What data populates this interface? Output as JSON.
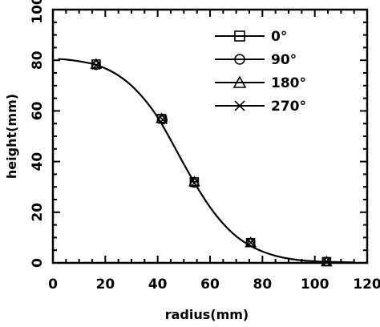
{
  "chart_data": {
    "type": "line",
    "title": "",
    "xlabel": "radius(mm)",
    "ylabel": "height(mm)",
    "xlim": [
      0,
      120
    ],
    "ylim": [
      0,
      100
    ],
    "x_ticks": [
      0,
      20,
      40,
      60,
      80,
      100,
      120
    ],
    "x_tick_labels": [
      "0",
      "20",
      "40",
      "60",
      "80",
      "100",
      "120"
    ],
    "y_ticks": [
      0,
      20,
      40,
      60,
      80,
      100
    ],
    "y_tick_labels": [
      "0",
      "20",
      "40",
      "60",
      "80",
      "100"
    ],
    "grid": false,
    "legend_position": "top-right",
    "series": [
      {
        "name": "0°",
        "marker": "square",
        "x": [
          16.5,
          41.5,
          54,
          75.5,
          104.5
        ],
        "y": [
          78.5,
          57,
          32,
          8,
          0.5
        ]
      },
      {
        "name": "90°",
        "marker": "circle",
        "x": [
          16.5,
          42,
          54,
          75.5,
          104.5
        ],
        "y": [
          78,
          56.5,
          31.5,
          8,
          0.5
        ]
      },
      {
        "name": "180°",
        "marker": "triangle",
        "x": [
          16.5,
          41.5,
          54,
          75.5,
          104.5
        ],
        "y": [
          78.5,
          57,
          32,
          8,
          0.5
        ]
      },
      {
        "name": "270°",
        "marker": "cross",
        "x": [
          16.5,
          42,
          54,
          75.5,
          104.5
        ],
        "y": [
          78,
          56.5,
          31.5,
          8,
          0.5
        ]
      }
    ],
    "fit_curve": {
      "x": [
        2,
        5,
        10,
        15,
        20,
        25,
        30,
        35,
        40,
        45,
        50,
        55,
        60,
        65,
        70,
        75,
        80,
        85,
        90,
        95,
        100,
        105,
        110,
        115
      ],
      "y": [
        80.5,
        80.3,
        79.6,
        78.6,
        76.8,
        74,
        70,
        64.5,
        57.5,
        48.5,
        39,
        30,
        22,
        15.5,
        10.5,
        7,
        4.5,
        2.8,
        1.7,
        1,
        0.6,
        0.4,
        0.3,
        0.2
      ]
    }
  }
}
